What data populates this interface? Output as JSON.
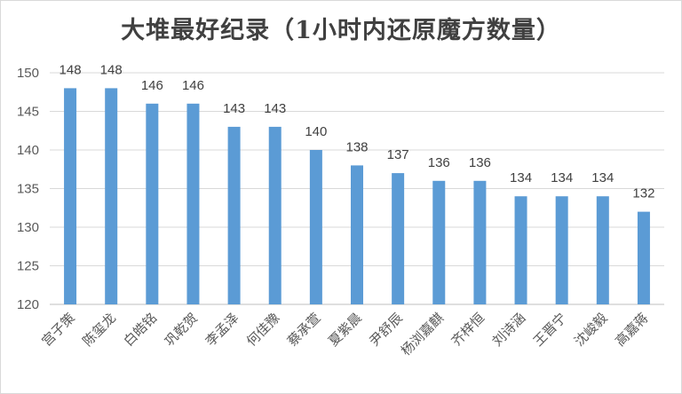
{
  "chart_data": {
    "type": "bar",
    "title": "大堆最好纪录（1小时内还原魔方数量）",
    "xlabel": "",
    "ylabel": "",
    "ylim": [
      120,
      150
    ],
    "yticks": [
      120,
      125,
      130,
      135,
      140,
      145,
      150
    ],
    "grid": true,
    "legend": "none",
    "bar_color": "#5b9bd5",
    "categories": [
      "宫子策",
      "陈玺龙",
      "白皓铭",
      "巩乾贺",
      "李孟泽",
      "何佳豫",
      "蔡承萱",
      "夏紫晨",
      "尹舒辰",
      "杨浏嘉麒",
      "齐梓恒",
      "刘诗涵",
      "王晋宁",
      "沈峻毅",
      "高嘉蒋"
    ],
    "values": [
      148,
      148,
      146,
      146,
      143,
      143,
      140,
      138,
      137,
      136,
      136,
      134,
      134,
      134,
      132
    ]
  }
}
